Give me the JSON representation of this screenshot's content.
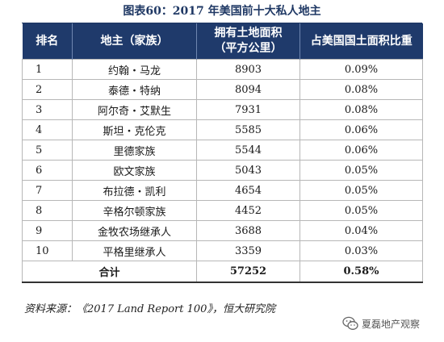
{
  "title": "图表60：2017 年美国前十大私人地主",
  "headers": {
    "rank": "排名",
    "owner": "地主（家族）",
    "area": "拥有土地面积\n（平方公里）",
    "share": "占美国国土面积比重"
  },
  "rows": [
    {
      "rank": "1",
      "owner": "约翰・马龙",
      "area": "8903",
      "share": "0.09%"
    },
    {
      "rank": "2",
      "owner": "泰德・特纳",
      "area": "8094",
      "share": "0.08%"
    },
    {
      "rank": "3",
      "owner": "阿尔奇・艾默生",
      "area": "7931",
      "share": "0.08%"
    },
    {
      "rank": "4",
      "owner": "斯坦・克伦克",
      "area": "5585",
      "share": "0.06%"
    },
    {
      "rank": "5",
      "owner": "里德家族",
      "area": "5544",
      "share": "0.06%"
    },
    {
      "rank": "6",
      "owner": "欧文家族",
      "area": "5043",
      "share": "0.05%"
    },
    {
      "rank": "7",
      "owner": "布拉德・凯利",
      "area": "4654",
      "share": "0.05%"
    },
    {
      "rank": "8",
      "owner": "辛格尔顿家族",
      "area": "4452",
      "share": "0.05%"
    },
    {
      "rank": "9",
      "owner": "金牧农场继承人",
      "area": "3688",
      "share": "0.04%"
    },
    {
      "rank": "10",
      "owner": "平格里继承人",
      "area": "3359",
      "share": "0.03%"
    }
  ],
  "total": {
    "label": "合计",
    "area": "57252",
    "share": "0.58%"
  },
  "source": "资料来源：《2017 Land Report 100》，恒大研究院",
  "watermark": {
    "text": "夏磊地产观察",
    "icon": "wechat-icon"
  }
}
